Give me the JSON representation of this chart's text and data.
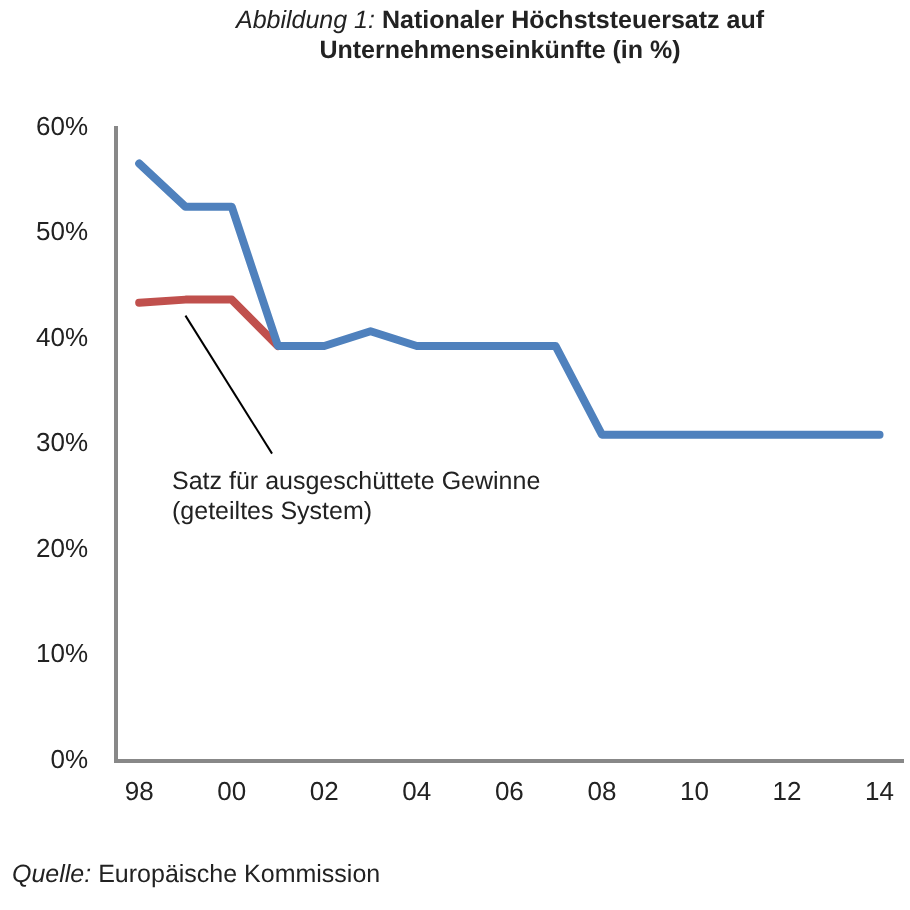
{
  "chart_data": {
    "type": "line",
    "title": "Abbildung 1: Nationaler Höchststeuersatz auf Unternehmenseinkünfte (in %)",
    "categories": [
      "98",
      null,
      "00",
      null,
      "02",
      null,
      "04",
      null,
      "06",
      null,
      "08",
      null,
      "10",
      null,
      "12",
      null,
      "14"
    ],
    "series": [
      {
        "color": "#4f81bd",
        "values": [
          56.6,
          52.5,
          52.5,
          39.3,
          39.3,
          40.7,
          39.3,
          39.3,
          39.3,
          39.3,
          30.9,
          30.9,
          30.9,
          30.9,
          30.9,
          30.9,
          30.9
        ]
      },
      {
        "color": "#c0504d",
        "values": [
          43.4,
          43.7,
          43.7,
          39.3,
          null,
          null,
          null,
          null,
          null,
          null,
          null,
          null,
          null,
          null,
          null,
          null,
          null
        ]
      }
    ],
    "ylim": [
      0,
      60
    ],
    "yticks": [
      {
        "value": 0,
        "label": "0%"
      },
      {
        "value": 10,
        "label": "10%"
      },
      {
        "value": 20,
        "label": "20%"
      },
      {
        "value": 30,
        "label": "30%"
      },
      {
        "value": 40,
        "label": "40%"
      },
      {
        "value": 50,
        "label": "50%"
      },
      {
        "value": 60,
        "label": "60%"
      }
    ],
    "grid": false,
    "legend": false,
    "marker": "none",
    "line_style": "solid",
    "annotations": [
      "Satz für ausgeschüttete Gewinne\n(geteiltes System)",
      "Quelle: Europäische Kommission"
    ]
  }
}
